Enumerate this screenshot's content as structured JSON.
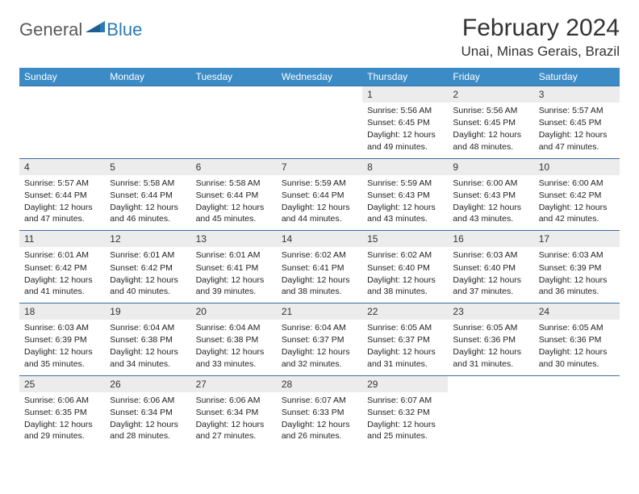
{
  "brand": {
    "part1": "General",
    "part2": "Blue"
  },
  "title": "February 2024",
  "location": "Unai, Minas Gerais, Brazil",
  "colors": {
    "header_bg": "#3b8bc6",
    "header_text": "#ffffff",
    "daynum_bg": "#ececec",
    "border": "#3b6fa0",
    "brand_grey": "#5a5a5a",
    "brand_blue": "#2a7ab8"
  },
  "weekdays": [
    "Sunday",
    "Monday",
    "Tuesday",
    "Wednesday",
    "Thursday",
    "Friday",
    "Saturday"
  ],
  "weeks": [
    [
      {
        "empty": true
      },
      {
        "empty": true
      },
      {
        "empty": true
      },
      {
        "empty": true
      },
      {
        "n": "1",
        "sunrise": "5:56 AM",
        "sunset": "6:45 PM",
        "daylight": "12 hours and 49 minutes."
      },
      {
        "n": "2",
        "sunrise": "5:56 AM",
        "sunset": "6:45 PM",
        "daylight": "12 hours and 48 minutes."
      },
      {
        "n": "3",
        "sunrise": "5:57 AM",
        "sunset": "6:45 PM",
        "daylight": "12 hours and 47 minutes."
      }
    ],
    [
      {
        "n": "4",
        "sunrise": "5:57 AM",
        "sunset": "6:44 PM",
        "daylight": "12 hours and 47 minutes."
      },
      {
        "n": "5",
        "sunrise": "5:58 AM",
        "sunset": "6:44 PM",
        "daylight": "12 hours and 46 minutes."
      },
      {
        "n": "6",
        "sunrise": "5:58 AM",
        "sunset": "6:44 PM",
        "daylight": "12 hours and 45 minutes."
      },
      {
        "n": "7",
        "sunrise": "5:59 AM",
        "sunset": "6:44 PM",
        "daylight": "12 hours and 44 minutes."
      },
      {
        "n": "8",
        "sunrise": "5:59 AM",
        "sunset": "6:43 PM",
        "daylight": "12 hours and 43 minutes."
      },
      {
        "n": "9",
        "sunrise": "6:00 AM",
        "sunset": "6:43 PM",
        "daylight": "12 hours and 43 minutes."
      },
      {
        "n": "10",
        "sunrise": "6:00 AM",
        "sunset": "6:42 PM",
        "daylight": "12 hours and 42 minutes."
      }
    ],
    [
      {
        "n": "11",
        "sunrise": "6:01 AM",
        "sunset": "6:42 PM",
        "daylight": "12 hours and 41 minutes."
      },
      {
        "n": "12",
        "sunrise": "6:01 AM",
        "sunset": "6:42 PM",
        "daylight": "12 hours and 40 minutes."
      },
      {
        "n": "13",
        "sunrise": "6:01 AM",
        "sunset": "6:41 PM",
        "daylight": "12 hours and 39 minutes."
      },
      {
        "n": "14",
        "sunrise": "6:02 AM",
        "sunset": "6:41 PM",
        "daylight": "12 hours and 38 minutes."
      },
      {
        "n": "15",
        "sunrise": "6:02 AM",
        "sunset": "6:40 PM",
        "daylight": "12 hours and 38 minutes."
      },
      {
        "n": "16",
        "sunrise": "6:03 AM",
        "sunset": "6:40 PM",
        "daylight": "12 hours and 37 minutes."
      },
      {
        "n": "17",
        "sunrise": "6:03 AM",
        "sunset": "6:39 PM",
        "daylight": "12 hours and 36 minutes."
      }
    ],
    [
      {
        "n": "18",
        "sunrise": "6:03 AM",
        "sunset": "6:39 PM",
        "daylight": "12 hours and 35 minutes."
      },
      {
        "n": "19",
        "sunrise": "6:04 AM",
        "sunset": "6:38 PM",
        "daylight": "12 hours and 34 minutes."
      },
      {
        "n": "20",
        "sunrise": "6:04 AM",
        "sunset": "6:38 PM",
        "daylight": "12 hours and 33 minutes."
      },
      {
        "n": "21",
        "sunrise": "6:04 AM",
        "sunset": "6:37 PM",
        "daylight": "12 hours and 32 minutes."
      },
      {
        "n": "22",
        "sunrise": "6:05 AM",
        "sunset": "6:37 PM",
        "daylight": "12 hours and 31 minutes."
      },
      {
        "n": "23",
        "sunrise": "6:05 AM",
        "sunset": "6:36 PM",
        "daylight": "12 hours and 31 minutes."
      },
      {
        "n": "24",
        "sunrise": "6:05 AM",
        "sunset": "6:36 PM",
        "daylight": "12 hours and 30 minutes."
      }
    ],
    [
      {
        "n": "25",
        "sunrise": "6:06 AM",
        "sunset": "6:35 PM",
        "daylight": "12 hours and 29 minutes."
      },
      {
        "n": "26",
        "sunrise": "6:06 AM",
        "sunset": "6:34 PM",
        "daylight": "12 hours and 28 minutes."
      },
      {
        "n": "27",
        "sunrise": "6:06 AM",
        "sunset": "6:34 PM",
        "daylight": "12 hours and 27 minutes."
      },
      {
        "n": "28",
        "sunrise": "6:07 AM",
        "sunset": "6:33 PM",
        "daylight": "12 hours and 26 minutes."
      },
      {
        "n": "29",
        "sunrise": "6:07 AM",
        "sunset": "6:32 PM",
        "daylight": "12 hours and 25 minutes."
      },
      {
        "empty": true
      },
      {
        "empty": true
      }
    ]
  ],
  "labels": {
    "sunrise": "Sunrise:",
    "sunset": "Sunset:",
    "daylight": "Daylight:"
  }
}
